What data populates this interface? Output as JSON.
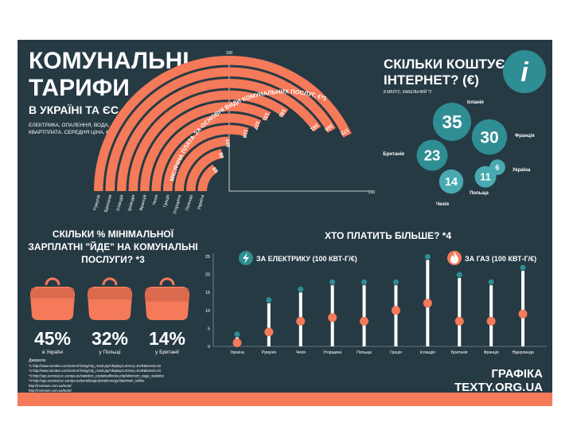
{
  "colors": {
    "background": "#263a44",
    "accent": "#f47a5a",
    "teal": "#2f8d94",
    "teal_light": "#48aab0",
    "white": "#ffffff",
    "grey": "#9fb3ba"
  },
  "header": {
    "title_line1": "КОМУНАЛЬНІ",
    "title_line2": "ТАРИФИ",
    "subtitle": "В УКРАЇНІ ТА ЄС",
    "desc_line1": "ЕЛЕКТРИКА, ОПАЛЕННЯ, ВОДА,",
    "desc_line2": "КВАРТПЛАТА. СЕРЕДНЯ ЦІНА, €"
  },
  "arc_chart": {
    "arc_title": "МІСЯЧНА ПЛАТА ЗА ОСНОВНІ ВИДИ КОМУНАЛЬНИХ ПОСЛУГ, €*1",
    "axis_top": "100",
    "axis_right": "200",
    "chart_data": {
      "type": "bar",
      "categories": [
        "Україна",
        "Польща",
        "Угорщина",
        "Греція",
        "Чехія",
        "Франція",
        "Ірландія",
        "Ісландія",
        "Британія",
        "Румунія"
      ],
      "values": [
        65,
        88,
        100,
        119,
        127,
        131,
        140,
        161,
        166,
        172
      ],
      "xlim": [
        0,
        200
      ]
    }
  },
  "internet": {
    "title_line1": "СКІЛЬКИ КОШТУЄ",
    "title_line2": "ІНТЕРНЕТ? (€)",
    "note": "8 МБІТ/С, КАБЕЛЬНИЙ *2",
    "info_icon": "i",
    "chart_data": {
      "type": "scatter",
      "categories": [
        "Іспанія",
        "Франція",
        "Британія",
        "Чехія",
        "Польща",
        "Україна"
      ],
      "values": [
        35,
        30,
        23,
        14,
        11,
        6
      ]
    }
  },
  "wage": {
    "title_line1": "СКІЛЬКИ % МІНІМАЛЬНОЇ",
    "title_line2": "ЗАРПЛАТНІ \"ЙДЕ\" НА КОМУНАЛЬНІ",
    "title_line3": "ПОСЛУГИ? *3",
    "chart_data": {
      "type": "bar",
      "items": [
        {
          "percent": "45%",
          "label": "в Україні",
          "value": 45
        },
        {
          "percent": "32%",
          "label": "у Польщі",
          "value": 32
        },
        {
          "percent": "14%",
          "label": "у Британії",
          "value": 14
        }
      ]
    }
  },
  "who_pays": {
    "title": "ХТО ПЛАТИТЬ БІЛЬШЕ? *4",
    "legend_electric": "ЗА ЕЛЕКТРИКУ (100 КВТ-Г/€)",
    "legend_gas": "ЗА ГАЗ (100 КВТ-Г/€)",
    "y_ticks": [
      "0",
      "5",
      "10",
      "15",
      "20",
      "25"
    ],
    "chart_data": {
      "type": "bar",
      "categories": [
        "Україна",
        "Румунія",
        "Чехія",
        "Угорщина",
        "Польща",
        "Греція",
        "Ісландія",
        "Британія",
        "Франція",
        "Нідерланди"
      ],
      "series": [
        {
          "name": "ЗА ЕЛЕКТРИКУ (100 КВТ-Г/€)",
          "values": [
            2.5,
            12,
            15,
            17,
            17,
            17,
            24,
            19,
            17,
            21
          ]
        },
        {
          "name": "ЗА ГАЗ (100 КВТ-Г/€)",
          "values": [
            1,
            4,
            7,
            8,
            7,
            10,
            12,
            7,
            7,
            9
          ]
        }
      ],
      "ylim": [
        0,
        25
      ]
    }
  },
  "footer": {
    "sources_label": "Джерела:",
    "sources": [
      "*1 http://www.numbeo.com/cost-of-living/city_result.jsp?displayCurrency=EUR&itemId=30",
      "*2 http://www.numbeo.com/cost-of-living/city_result.jsp?displayCurrency=EUR&itemId=33",
      "*3 http://epp.eurostat.ec.europa.eu/statistics_explained/index.php/Minimum_wage_statistics",
      "*4 http://epp.eurostat.ec.europa.eu/portal/page/portal/energy/data/main_tables",
      "http://inventure.com.ua/tools/",
      "http://inventure.com.ua/tools/"
    ],
    "brand_line1": "ГРАФІКА",
    "brand_line2": "TEXTY.ORG.UA"
  }
}
